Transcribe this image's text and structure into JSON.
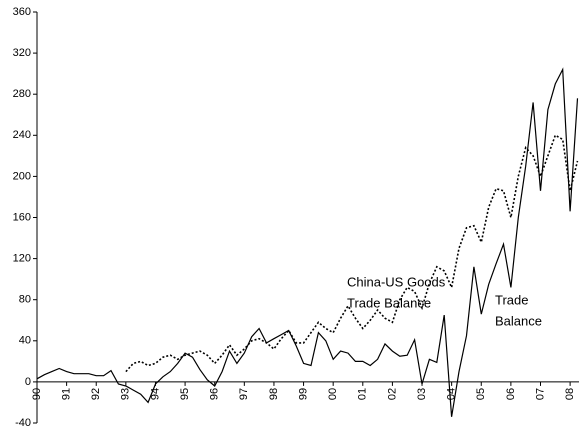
{
  "chart_data": {
    "type": "line",
    "x": [
      1990,
      1990.25,
      1990.5,
      1990.75,
      1991,
      1991.25,
      1991.5,
      1991.75,
      1992,
      1992.25,
      1992.5,
      1992.75,
      1993,
      1993.25,
      1993.5,
      1993.75,
      1994,
      1994.25,
      1994.5,
      1994.75,
      1995,
      1995.25,
      1995.5,
      1995.75,
      1996,
      1996.25,
      1996.5,
      1996.75,
      1997,
      1997.25,
      1997.5,
      1997.75,
      1998,
      1998.25,
      1998.5,
      1998.75,
      1999,
      1999.25,
      1999.5,
      1999.75,
      2000,
      2000.25,
      2000.5,
      2000.75,
      2001,
      2001.25,
      2001.5,
      2001.75,
      2002,
      2002.25,
      2002.5,
      2002.75,
      2003,
      2003.25,
      2003.5,
      2003.75,
      2004,
      2004.25,
      2004.5,
      2004.75,
      2005,
      2005.25,
      2005.5,
      2005.75,
      2006,
      2006.25,
      2006.5,
      2006.75,
      2007,
      2007.25,
      2007.5,
      2007.75,
      2008,
      2008.25
    ],
    "series": [
      {
        "name": "Trade Balance",
        "color": "#000000",
        "dash": "solid",
        "values": [
          3,
          7,
          10,
          13,
          10,
          8,
          8,
          8,
          6,
          6,
          11,
          -2,
          -4,
          -8,
          -12,
          -20,
          -2,
          5,
          10,
          18,
          28,
          24,
          12,
          2,
          -4,
          10,
          30,
          18,
          28,
          44,
          52,
          38,
          42,
          46,
          50,
          35,
          18,
          16,
          48,
          40,
          22,
          30,
          28,
          20,
          20,
          16,
          22,
          37,
          30,
          25,
          26,
          41,
          -2,
          22,
          19,
          65,
          -34,
          10,
          45,
          112,
          66,
          95,
          115,
          134,
          92,
          160,
          210,
          272,
          186,
          265,
          290,
          304,
          166,
          276
        ]
      },
      {
        "name": "China-US Goods Trade Balance",
        "color": "#000000",
        "dash": "dotted",
        "values": [
          null,
          null,
          null,
          null,
          null,
          null,
          null,
          null,
          null,
          null,
          null,
          null,
          10,
          18,
          20,
          16,
          18,
          24,
          26,
          22,
          26,
          28,
          30,
          26,
          18,
          26,
          36,
          26,
          32,
          40,
          42,
          38,
          32,
          42,
          50,
          38,
          38,
          48,
          58,
          52,
          48,
          62,
          74,
          62,
          52,
          60,
          70,
          62,
          58,
          80,
          92,
          88,
          72,
          96,
          112,
          108,
          92,
          130,
          150,
          152,
          136,
          170,
          188,
          186,
          160,
          200,
          228,
          220,
          200,
          220,
          240,
          236,
          186,
          215
        ]
      }
    ],
    "annotations": [
      {
        "lines": [
          "China-US Goods",
          "Trade Balance"
        ]
      },
      {
        "lines": [
          "Trade",
          "Balance"
        ]
      }
    ],
    "xlim": [
      1990,
      2008.3
    ],
    "xticks": [
      {
        "value": 1990,
        "label": "90"
      },
      {
        "value": 1991,
        "label": "91"
      },
      {
        "value": 1992,
        "label": "92"
      },
      {
        "value": 1993,
        "label": "93"
      },
      {
        "value": 1994,
        "label": "94"
      },
      {
        "value": 1995,
        "label": "95"
      },
      {
        "value": 1996,
        "label": "96"
      },
      {
        "value": 1997,
        "label": "97"
      },
      {
        "value": 1998,
        "label": "98"
      },
      {
        "value": 1999,
        "label": "99"
      },
      {
        "value": 2000,
        "label": "00"
      },
      {
        "value": 2001,
        "label": "01"
      },
      {
        "value": 2002,
        "label": "02"
      },
      {
        "value": 2003,
        "label": "03"
      },
      {
        "value": 2004,
        "label": "04"
      },
      {
        "value": 2005,
        "label": "05"
      },
      {
        "value": 2006,
        "label": "06"
      },
      {
        "value": 2007,
        "label": "07"
      },
      {
        "value": 2008,
        "label": "08"
      }
    ],
    "ylim": [
      -40,
      360
    ],
    "yticks": [
      -40,
      0,
      40,
      80,
      120,
      160,
      200,
      240,
      280,
      320,
      360
    ]
  }
}
